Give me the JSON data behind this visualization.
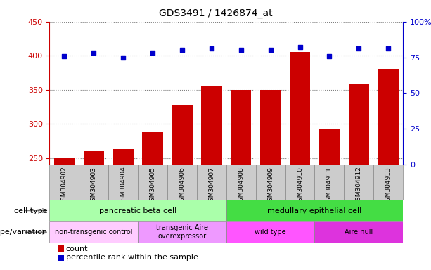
{
  "title": "GDS3491 / 1426874_at",
  "samples": [
    "GSM304902",
    "GSM304903",
    "GSM304904",
    "GSM304905",
    "GSM304906",
    "GSM304907",
    "GSM304908",
    "GSM304909",
    "GSM304910",
    "GSM304911",
    "GSM304912",
    "GSM304913"
  ],
  "counts": [
    251,
    260,
    263,
    288,
    328,
    355,
    350,
    350,
    405,
    293,
    358,
    381
  ],
  "percentile_ranks": [
    76,
    78,
    75,
    78,
    80,
    81,
    80,
    80,
    82,
    76,
    81,
    81
  ],
  "ylim_left": [
    240,
    450
  ],
  "ylim_right": [
    0,
    100
  ],
  "yticks_left": [
    250,
    300,
    350,
    400,
    450
  ],
  "yticks_right": [
    0,
    25,
    50,
    75,
    100
  ],
  "bar_color": "#cc0000",
  "dot_color": "#0000cc",
  "cell_type_groups": [
    {
      "label": "pancreatic beta cell",
      "start": 0,
      "end": 6,
      "color": "#aaffaa"
    },
    {
      "label": "medullary epithelial cell",
      "start": 6,
      "end": 12,
      "color": "#44dd44"
    }
  ],
  "genotype_groups": [
    {
      "label": "non-transgenic control",
      "start": 0,
      "end": 3,
      "color": "#ffccff"
    },
    {
      "label": "transgenic Aire\noverexpressor",
      "start": 3,
      "end": 6,
      "color": "#ee99ff"
    },
    {
      "label": "wild type",
      "start": 6,
      "end": 9,
      "color": "#ff55ff"
    },
    {
      "label": "Aire null",
      "start": 9,
      "end": 12,
      "color": "#dd33dd"
    }
  ],
  "cell_type_label": "cell type",
  "genotype_label": "genotype/variation",
  "legend_count": "count",
  "legend_pct": "percentile rank within the sample",
  "xlabel_box_color": "#cccccc",
  "xlabel_box_edge": "#888888"
}
